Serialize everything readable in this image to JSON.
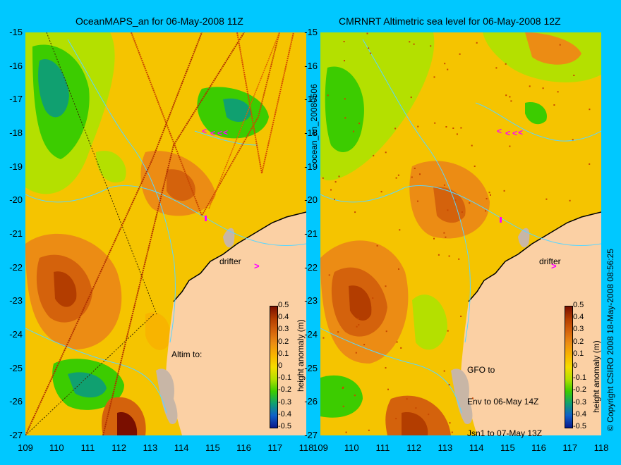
{
  "colors": {
    "frame": "#00c8ff",
    "land": "#fbd0a4",
    "coast": "#c8b6a6",
    "contour": "#5ad6ff",
    "drifter": "#ff00ff"
  },
  "left_panel": {
    "title": "OceanMAPS_an for 06-May-2008 11Z",
    "altim_label": "Altim to:",
    "drifter_label": "drifter"
  },
  "right_panel": {
    "title": "CMRNRT Altimetric sea level  for 06-May-2008 12Z",
    "altim_lines": [
      "GFO to",
      "Env to 06-May 14Z",
      "Jsn1 to 07-May 13Z"
    ],
    "drifter_label": "drifter"
  },
  "y_ticks": [
    "-15",
    "-16",
    "-17",
    "-18",
    "-19",
    "-20",
    "-21",
    "-22",
    "-23",
    "-24",
    "-25",
    "-26",
    "-27"
  ],
  "x_ticks": [
    "109",
    "110",
    "111",
    "112",
    "113",
    "114",
    "115",
    "116",
    "117",
    "118"
  ],
  "colorbar": {
    "title": "height anomaly (m)",
    "ticks": [
      "0.5",
      "0.4",
      "0.3",
      "0.2",
      "0.1",
      "0",
      "-0.1",
      "-0.2",
      "-0.3",
      "-0.4",
      "-0.5"
    ],
    "stops": [
      "#7a0f00",
      "#b33d00",
      "#d4620c",
      "#ec8c14",
      "#f8b400",
      "#f5dc00",
      "#b4e000",
      "#3ccc00",
      "#10a070",
      "#1060c8",
      "#0a1a8c"
    ]
  },
  "side_text": {
    "run_id": "ocean_an_20080506",
    "copyright": "© Copyright CSIRO 2008  18-May-2008 08:56:25"
  },
  "map_extent": {
    "lon": [
      109,
      118
    ],
    "lat": [
      -27,
      -15
    ]
  }
}
